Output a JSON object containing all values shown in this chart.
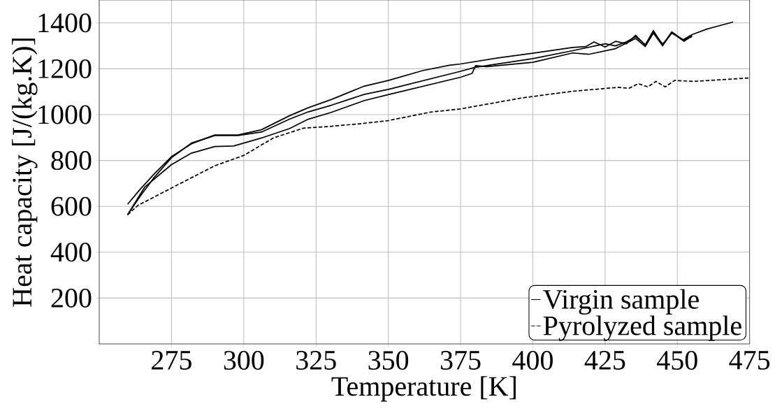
{
  "chart_data": {
    "type": "line",
    "xlabel": "Temperature [K]",
    "ylabel": "Heat capacity [J/(kg.K)]",
    "xlim": [
      250,
      475
    ],
    "ylim": [
      0,
      1500
    ],
    "xticks": [
      {
        "value": 250,
        "label": null
      },
      275,
      300,
      325,
      350,
      375,
      400,
      425,
      450,
      475
    ],
    "yticks": [
      {
        "value": 0,
        "label": null
      },
      200,
      400,
      600,
      800,
      1000,
      1200,
      1400
    ],
    "grid": true,
    "legend": "bottom right",
    "series": [
      {
        "name": "Virgin sample",
        "color": "#000000",
        "line_style": "solid",
        "x": [
          259.8,
          264.2,
          269,
          275,
          281.9,
          290,
          298,
          306.1,
          315.8,
          322.3,
          330.3,
          341.6,
          350,
          361.9,
          371.1,
          375,
          387.9,
          400,
          413.8,
          418.4,
          421.2,
          425,
          428.7,
          432.4,
          435.6,
          438.9,
          441.7,
          444.9,
          448.1,
          451.9,
          455.1,
          460.2,
          469.3
        ],
        "values": [
          609,
          675,
          741,
          817,
          873,
          911,
          911,
          934,
          995,
          1030,
          1066,
          1124,
          1149,
          1192,
          1215,
          1221,
          1247,
          1268,
          1293,
          1297,
          1317,
          1295,
          1320,
          1309,
          1346,
          1303,
          1367,
          1303,
          1361,
          1326,
          1349,
          1373,
          1404
        ]
      },
      {
        "color": "#000000",
        "line_style": "solid",
        "x": [
          259.8,
          264.2,
          269,
          275,
          281.9,
          290,
          298,
          306.1,
          315.8,
          322.3,
          330.3,
          341.6,
          350,
          375,
          380,
          400,
          413.8,
          425,
          428.6,
          432.4,
          435.6,
          438.9,
          441.7,
          444.9,
          448.1,
          452.3,
          455.1
        ],
        "values": [
          563,
          645,
          726,
          812,
          876,
          909,
          909,
          924,
          980,
          1012,
          1041,
          1088,
          1110,
          1189,
          1206,
          1244,
          1279,
          1309,
          1300,
          1318,
          1340,
          1305,
          1360,
          1308,
          1355,
          1325,
          1341
        ]
      },
      {
        "color": "#000000",
        "line_style": "solid",
        "x": [
          259.8,
          265.8,
          275,
          281.9,
          290,
          296.5,
          306.1,
          315.8,
          322.3,
          330.3,
          341.6,
          350,
          375,
          379,
          380.2,
          384,
          400,
          413.8,
          419.3,
          428.6,
          435.6,
          438.9,
          441.7,
          444.9,
          448.1,
          452.3,
          455.1
        ],
        "values": [
          563,
          685,
          782,
          832,
          861,
          863,
          898,
          939,
          980,
          1010,
          1061,
          1087,
          1163,
          1180,
          1214,
          1209,
          1228,
          1269,
          1263,
          1288,
          1332,
          1297,
          1356,
          1300,
          1358,
          1320,
          1344
        ]
      },
      {
        "name": "Pyrolyzed sample",
        "color": "#000000",
        "line_style": "dashed",
        "x": [
          259.8,
          263.4,
          275,
          290,
          300,
          310.2,
          320.6,
          330.3,
          341.6,
          350,
          364.6,
          375,
          396.3,
          413.8,
          429.6,
          433.3,
          436.5,
          439.8,
          442.6,
          445.8,
          449,
          455.5,
          475
        ],
        "values": [
          563,
          604,
          680,
          777,
          822,
          898,
          941,
          949,
          962,
          974,
          1011,
          1025,
          1073,
          1102,
          1119,
          1115,
          1135,
          1121,
          1145,
          1121,
          1149,
          1145,
          1160
        ]
      }
    ]
  }
}
